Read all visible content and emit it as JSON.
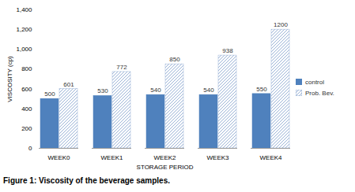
{
  "chart_data": {
    "type": "bar",
    "categories": [
      "WEEK0",
      "WEEK1",
      "WEEK2",
      "WEEK3",
      "WEEK4"
    ],
    "series": [
      {
        "name": "control",
        "color": "#4f81bd",
        "values": [
          500,
          530,
          540,
          540,
          550
        ]
      },
      {
        "name": "Prob. Bev.",
        "color": "#9bb3d6",
        "values": [
          601,
          772,
          850,
          938,
          1200
        ]
      }
    ],
    "x_label": "STORAGE PERIOD",
    "y_label": "VISCOSITY (cp)",
    "caption": "Figure 1: Viscosity of the beverage samples.",
    "ylim": [
      0,
      1400
    ],
    "yticks": [
      0,
      200,
      400,
      600,
      800,
      1000,
      1200,
      1400
    ],
    "grid": false,
    "legend": "right",
    "data_labels": true
  }
}
